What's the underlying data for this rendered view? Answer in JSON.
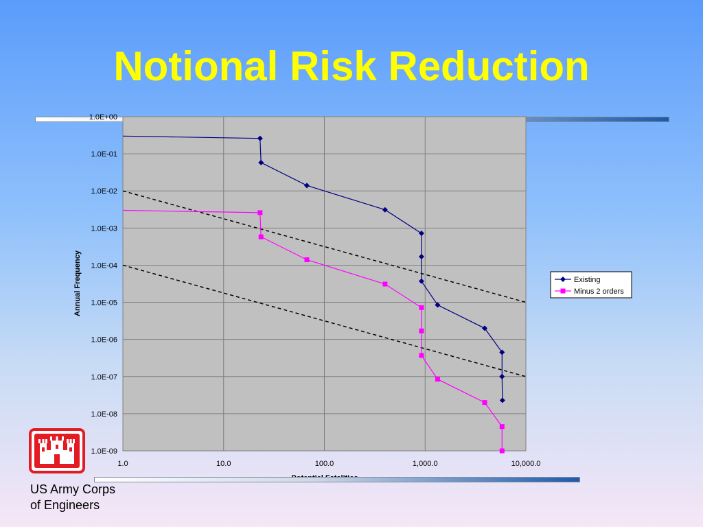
{
  "slide": {
    "title": "Notional Risk Reduction",
    "org_line1": "US Army Corps",
    "org_line2": "of Engineers",
    "logo_icon": "castle-icon",
    "colors": {
      "title": "#ffff00",
      "logo_red": "#e31b23"
    }
  },
  "chart_data": {
    "type": "line",
    "title": "",
    "xlabel": "Potential Fatalities",
    "ylabel": "Annual Frequency",
    "x_scale": "log",
    "y_scale": "log",
    "xlim": [
      1,
      10000
    ],
    "ylim": [
      1e-09,
      1
    ],
    "x_ticks": [
      {
        "value": 1,
        "label": "1.0"
      },
      {
        "value": 10,
        "label": "10.0"
      },
      {
        "value": 100,
        "label": "100.0"
      },
      {
        "value": 1000,
        "label": "1,000.0"
      },
      {
        "value": 10000,
        "label": "10,000.0"
      }
    ],
    "y_ticks": [
      {
        "value": 1,
        "label": "1.0E+00"
      },
      {
        "value": 0.1,
        "label": "1.0E-01"
      },
      {
        "value": 0.01,
        "label": "1.0E-02"
      },
      {
        "value": 0.001,
        "label": "1.0E-03"
      },
      {
        "value": 0.0001,
        "label": "1.0E-04"
      },
      {
        "value": 1e-05,
        "label": "1.0E-05"
      },
      {
        "value": 1e-06,
        "label": "1.0E-06"
      },
      {
        "value": 1e-07,
        "label": "1.0E-07"
      },
      {
        "value": 1e-08,
        "label": "1.0E-08"
      },
      {
        "value": 1e-09,
        "label": "1.0E-09"
      }
    ],
    "grid": true,
    "legend_position": "right",
    "series": [
      {
        "name": "Existing",
        "color": "#000080",
        "marker": "diamond",
        "start_line": {
          "x": 1,
          "y": 0.3
        },
        "points": [
          {
            "x": 23,
            "y": 0.26
          },
          {
            "x": 23.5,
            "y": 0.058
          },
          {
            "x": 67,
            "y": 0.014
          },
          {
            "x": 400,
            "y": 0.0031
          },
          {
            "x": 920,
            "y": 0.00072
          },
          {
            "x": 920,
            "y": 0.00017
          },
          {
            "x": 920,
            "y": 3.7e-05
          },
          {
            "x": 1330,
            "y": 8.5e-06
          },
          {
            "x": 3900,
            "y": 2e-06
          },
          {
            "x": 5800,
            "y": 4.5e-07
          },
          {
            "x": 5800,
            "y": 1e-07
          },
          {
            "x": 5850,
            "y": 2.3e-08
          }
        ]
      },
      {
        "name": "Minus 2 orders",
        "color": "#ff00ff",
        "marker": "square",
        "start_line": {
          "x": 1,
          "y": 0.003
        },
        "points": [
          {
            "x": 23,
            "y": 0.0026
          },
          {
            "x": 23.5,
            "y": 0.00058
          },
          {
            "x": 67,
            "y": 0.00014
          },
          {
            "x": 400,
            "y": 3.1e-05
          },
          {
            "x": 920,
            "y": 7.2e-06
          },
          {
            "x": 920,
            "y": 1.7e-06
          },
          {
            "x": 920,
            "y": 3.7e-07
          },
          {
            "x": 1330,
            "y": 8.5e-08
          },
          {
            "x": 3900,
            "y": 2e-08
          },
          {
            "x": 5800,
            "y": 4.5e-09
          },
          {
            "x": 5800,
            "y": 1e-09
          }
        ]
      }
    ],
    "reference_lines": [
      {
        "style": "dashed",
        "color": "#000000",
        "from": {
          "x": 1,
          "y": 0.01
        },
        "to": {
          "x": 10000,
          "y": 1e-05
        }
      },
      {
        "style": "dashed",
        "color": "#000000",
        "from": {
          "x": 1,
          "y": 0.0001
        },
        "to": {
          "x": 10000,
          "y": 1e-07
        }
      }
    ]
  }
}
